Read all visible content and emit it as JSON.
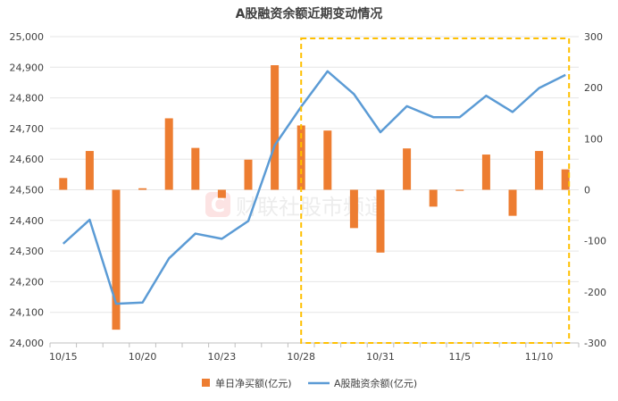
{
  "chart_data": {
    "type": "bar+line",
    "title": "A股融资余额近期变动情况",
    "categories": [
      "10/15",
      "",
      "",
      "10/20",
      "",
      "",
      "10/23",
      "",
      "",
      "10/28",
      "",
      "",
      "10/31",
      "",
      "",
      "11/5",
      "",
      "",
      "11/10",
      ""
    ],
    "series": [
      {
        "name": "单日净买额(亿元)",
        "type": "bar",
        "axis": "right",
        "color": "#ED7D31",
        "values": [
          23,
          76,
          -274,
          3,
          140,
          82,
          -16,
          59,
          244,
          126,
          116,
          -75,
          -123,
          81,
          -33,
          -2,
          69,
          -51,
          76,
          40
        ]
      },
      {
        "name": "A股融资余额(亿元)",
        "type": "line",
        "axis": "left",
        "color": "#5B9BD5",
        "values": [
          24324,
          24402,
          24128,
          24132,
          24276,
          24357,
          24340,
          24398,
          24645,
          24771,
          24887,
          24812,
          24688,
          24773,
          24737,
          24737,
          24807,
          24754,
          24832,
          24875
        ]
      }
    ],
    "y_left": {
      "lim": [
        24000,
        25000
      ],
      "ticks": [
        "24,000",
        "24,100",
        "24,200",
        "24,300",
        "24,400",
        "24,500",
        "24,600",
        "24,700",
        "24,800",
        "24,900",
        "25,000"
      ]
    },
    "y_right": {
      "lim": [
        -300,
        300
      ],
      "ticks": [
        "-300",
        "-200",
        "-100",
        "0",
        "100",
        "200",
        "300"
      ]
    },
    "grid": true,
    "legend": "bottom",
    "highlight_box_color": "#FFC000",
    "watermark": "财联社股市频道"
  }
}
